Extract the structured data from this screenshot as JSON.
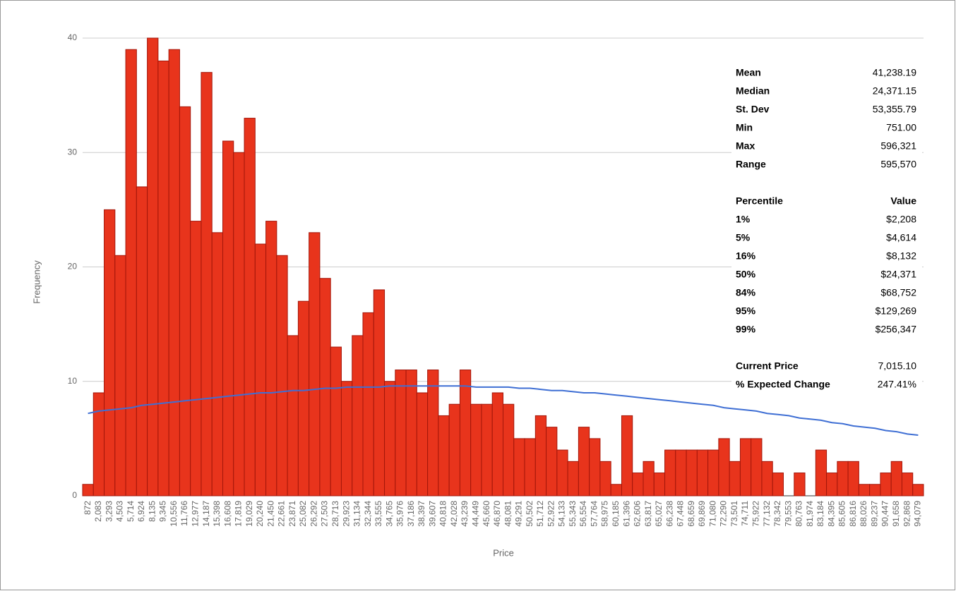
{
  "chart_data": {
    "type": "bar",
    "x_label": "Price",
    "y_label": "Frequency",
    "categories": [
      "872",
      "2,083",
      "3,293",
      "4,503",
      "5,714",
      "6,924",
      "8,135",
      "9,345",
      "10,556",
      "11,766",
      "12,977",
      "14,187",
      "15,398",
      "16,608",
      "17,819",
      "19,029",
      "20,240",
      "21,450",
      "22,661",
      "23,871",
      "25,082",
      "26,292",
      "27,503",
      "28,713",
      "29,923",
      "31,134",
      "32,344",
      "33,555",
      "34,765",
      "35,976",
      "37,186",
      "38,397",
      "39,607",
      "40,818",
      "42,028",
      "43,239",
      "44,449",
      "45,660",
      "46,870",
      "48,081",
      "49,291",
      "50,502",
      "51,712",
      "52,922",
      "54,133",
      "55,343",
      "56,554",
      "57,764",
      "58,975",
      "60,185",
      "61,396",
      "62,606",
      "63,817",
      "65,027",
      "66,238",
      "67,448",
      "68,659",
      "69,869",
      "71,080",
      "72,290",
      "73,501",
      "74,711",
      "75,922",
      "77,132",
      "78,342",
      "79,553",
      "80,763",
      "81,974",
      "83,184",
      "84,395",
      "85,605",
      "86,816",
      "88,026",
      "89,237",
      "90,447",
      "91,658",
      "92,868",
      "94,079"
    ],
    "values": [
      1,
      9,
      25,
      21,
      39,
      27,
      40,
      38,
      39,
      34,
      24,
      37,
      23,
      31,
      30,
      33,
      22,
      24,
      21,
      14,
      17,
      23,
      19,
      13,
      10,
      14,
      16,
      18,
      10,
      11,
      11,
      9,
      11,
      7,
      8,
      11,
      8,
      8,
      9,
      8,
      5,
      5,
      7,
      6,
      4,
      3,
      6,
      5,
      3,
      1,
      7,
      2,
      3,
      2,
      4,
      4,
      4,
      4,
      4,
      5,
      3,
      5,
      5,
      3,
      2,
      0,
      2,
      0,
      4,
      2,
      3,
      3,
      1,
      1,
      2,
      3,
      2,
      1
    ],
    "color": "#e8341c",
    "curve": {
      "color": "#3f6fd4",
      "values": [
        7.2,
        7.4,
        7.5,
        7.6,
        7.7,
        7.9,
        8.0,
        8.1,
        8.2,
        8.3,
        8.4,
        8.5,
        8.6,
        8.7,
        8.8,
        8.9,
        9.0,
        9.0,
        9.1,
        9.2,
        9.2,
        9.3,
        9.4,
        9.4,
        9.5,
        9.5,
        9.5,
        9.5,
        9.6,
        9.6,
        9.6,
        9.6,
        9.6,
        9.6,
        9.6,
        9.6,
        9.5,
        9.5,
        9.5,
        9.5,
        9.4,
        9.4,
        9.3,
        9.2,
        9.2,
        9.1,
        9.0,
        9.0,
        8.9,
        8.8,
        8.7,
        8.6,
        8.5,
        8.4,
        8.3,
        8.2,
        8.1,
        8.0,
        7.9,
        7.7,
        7.6,
        7.5,
        7.4,
        7.2,
        7.1,
        7.0,
        6.8,
        6.7,
        6.6,
        6.4,
        6.3,
        6.1,
        6.0,
        5.9,
        5.7,
        5.6,
        5.4,
        5.3
      ]
    },
    "ylim": [
      0,
      40
    ],
    "yticks": [
      0,
      10,
      20,
      30,
      40
    ],
    "grid": true,
    "stats": [
      {
        "label": "Mean",
        "value": "41,238.19"
      },
      {
        "label": "Median",
        "value": "24,371.15"
      },
      {
        "label": "St. Dev",
        "value": "53,355.79"
      },
      {
        "label": "Min",
        "value": "751.00"
      },
      {
        "label": "Max",
        "value": "596,321"
      },
      {
        "label": "Range",
        "value": "595,570"
      }
    ],
    "percentiles": {
      "header": [
        "Percentile",
        "Value"
      ],
      "rows": [
        {
          "label": "1%",
          "value": "$2,208"
        },
        {
          "label": "5%",
          "value": "$4,614"
        },
        {
          "label": "16%",
          "value": "$8,132"
        },
        {
          "label": "50%",
          "value": "$24,371"
        },
        {
          "label": "84%",
          "value": "$68,752"
        },
        {
          "label": "95%",
          "value": "$129,269"
        },
        {
          "label": "99%",
          "value": "$256,347"
        }
      ]
    },
    "extra": [
      {
        "label": "Current Price",
        "value": "7,015.10"
      },
      {
        "label": "% Expected Change",
        "value": "247.41%"
      }
    ]
  }
}
